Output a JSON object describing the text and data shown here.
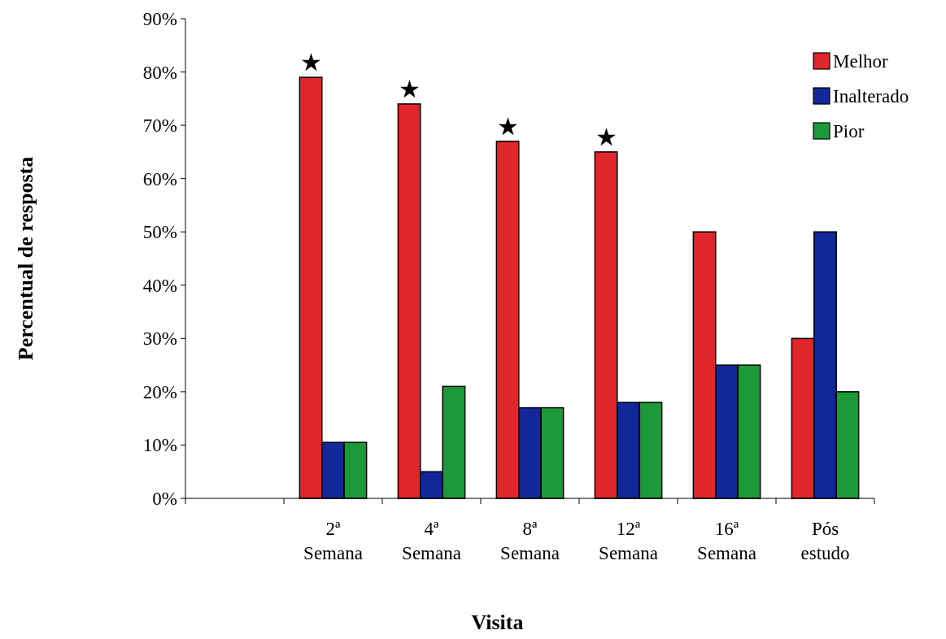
{
  "chart_data": {
    "type": "bar",
    "xlabel": "Visita",
    "ylabel": "Percentual de resposta",
    "categories": [
      null,
      "2ª Semana",
      "4ª Semana",
      "8ª Semana",
      "12ª Semana",
      "16ª Semana",
      "Pós estudo"
    ],
    "series": [
      {
        "name": "Melhor",
        "color": "#e0262b",
        "values": [
          null,
          79,
          74,
          67,
          65,
          50,
          30
        ]
      },
      {
        "name": "Inalterado",
        "color": "#12279a",
        "values": [
          null,
          10.5,
          5,
          17,
          18,
          25,
          50
        ]
      },
      {
        "name": "Pior",
        "color": "#1c9a3a",
        "values": [
          null,
          10.5,
          21,
          17,
          18,
          25,
          20
        ]
      }
    ],
    "ylim": [
      0,
      90
    ],
    "yticks": [
      {
        "value": 0,
        "label": "0%"
      },
      {
        "value": 10,
        "label": "10%"
      },
      {
        "value": 20,
        "label": "20%"
      },
      {
        "value": 30,
        "label": "30%"
      },
      {
        "value": 40,
        "label": "40%"
      },
      {
        "value": 50,
        "label": "50%"
      },
      {
        "value": 60,
        "label": "60%"
      },
      {
        "value": 70,
        "label": "70%"
      },
      {
        "value": 80,
        "label": "80%"
      },
      {
        "value": 90,
        "label": "90%"
      }
    ],
    "annotations": [
      "★",
      "★",
      "★",
      "★"
    ],
    "legend": "top right",
    "grid": false
  }
}
